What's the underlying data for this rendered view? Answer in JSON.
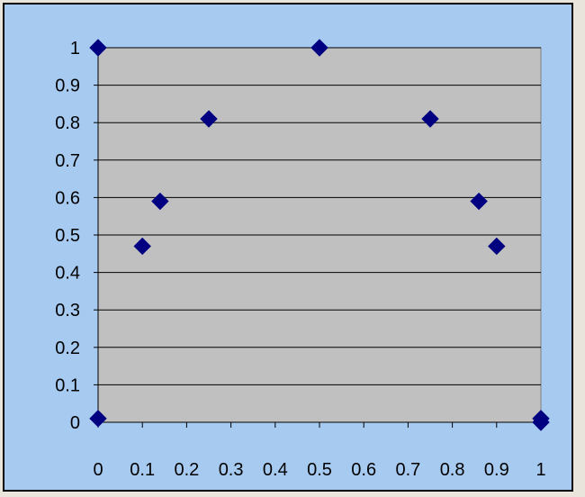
{
  "chart_data": {
    "type": "scatter",
    "title": "",
    "xlabel": "",
    "ylabel": "",
    "xlim": [
      0,
      1
    ],
    "ylim": [
      0,
      1
    ],
    "x_ticks": [
      "0",
      "0.1",
      "0.2",
      "0.3",
      "0.4",
      "0.5",
      "0.6",
      "0.7",
      "0.8",
      "0.9",
      "1"
    ],
    "y_ticks": [
      "0",
      "0.1",
      "0.2",
      "0.3",
      "0.4",
      "0.5",
      "0.6",
      "0.7",
      "0.8",
      "0.9",
      "1"
    ],
    "grid": "horizontal",
    "legend": "none",
    "marker": "diamond",
    "colors": {
      "chart_area": "#a6caf0",
      "plot_area": "#c0c0c0",
      "marker": "#000080",
      "gridline": "#000000"
    },
    "series": [
      {
        "points": [
          {
            "x": 0,
            "y": 1
          },
          {
            "x": 0,
            "y": 0.01
          },
          {
            "x": 0.1,
            "y": 0.47
          },
          {
            "x": 0.14,
            "y": 0.59
          },
          {
            "x": 0.25,
            "y": 0.81
          },
          {
            "x": 0.5,
            "y": 1
          },
          {
            "x": 0.75,
            "y": 0.81
          },
          {
            "x": 0.86,
            "y": 0.59
          },
          {
            "x": 0.9,
            "y": 0.47
          },
          {
            "x": 1,
            "y": 0
          },
          {
            "x": 1,
            "y": 0.01
          }
        ]
      }
    ]
  }
}
